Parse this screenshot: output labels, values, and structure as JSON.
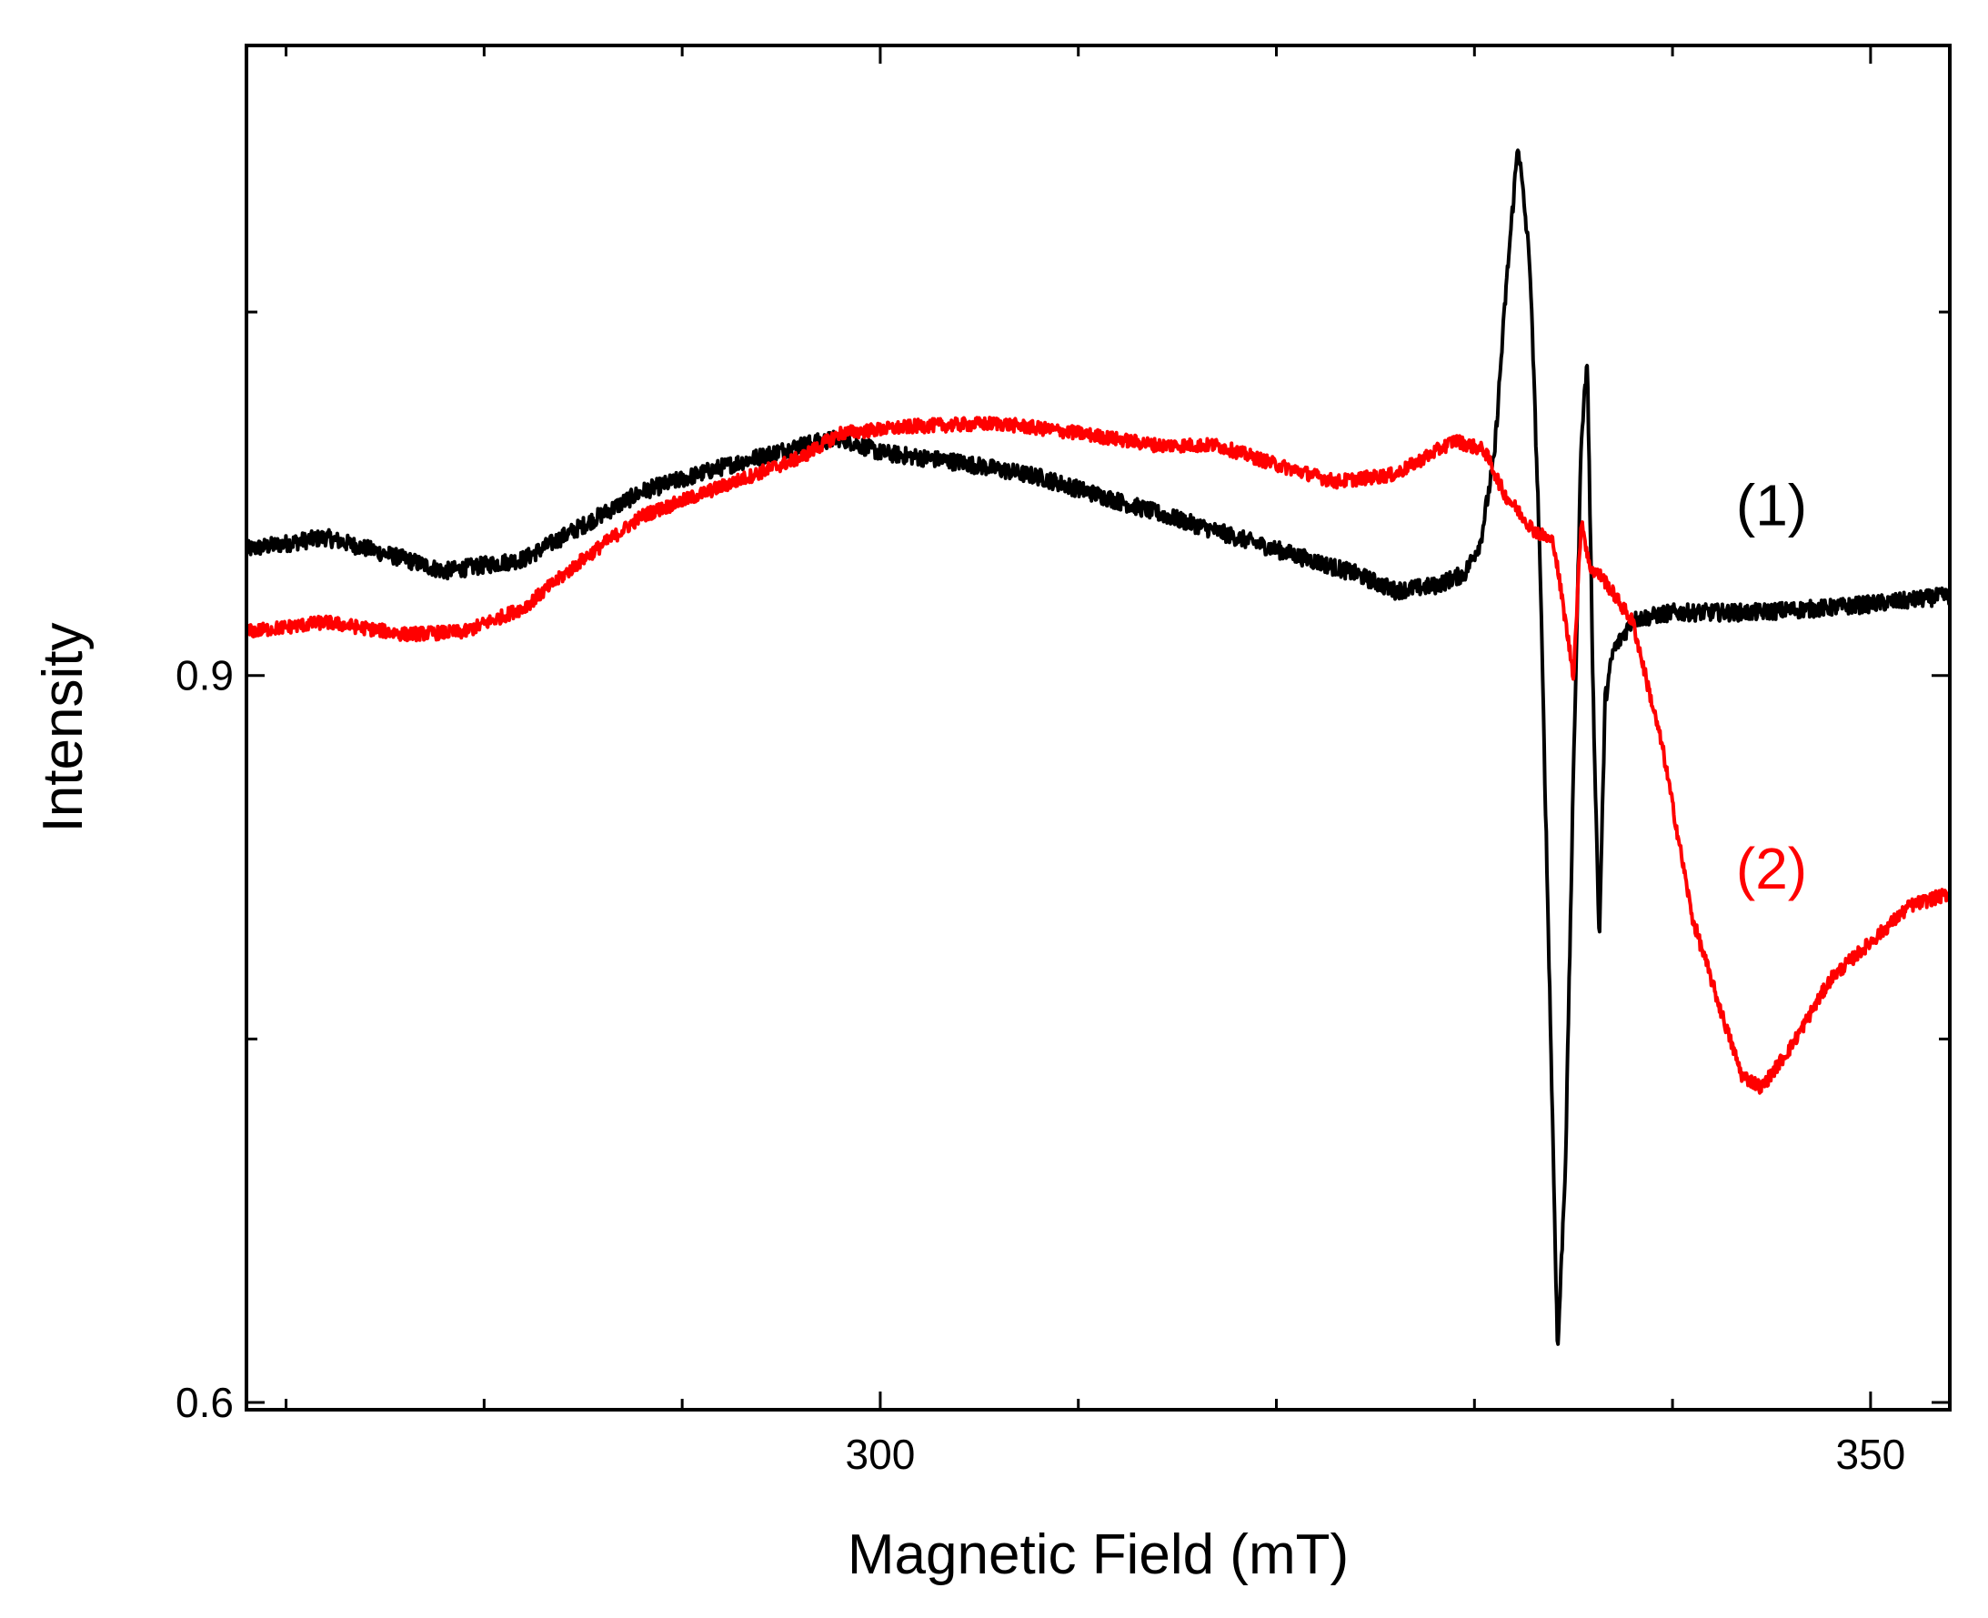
{
  "chart_data": {
    "type": "line",
    "title": "",
    "xlabel": "Magnetic Field (mT)",
    "ylabel": "Intensity",
    "xlim": [
      268,
      354
    ],
    "ylim": [
      0.597,
      1.16
    ],
    "xticks": [
      {
        "value": 300,
        "label": "300"
      },
      {
        "value": 350,
        "label": "350"
      }
    ],
    "x_minor_ticks": [
      270,
      280,
      290,
      310,
      320,
      330,
      340
    ],
    "yticks": [
      {
        "value": 0.9,
        "label": "0.9"
      },
      {
        "value": 0.6,
        "label": "0.6"
      }
    ],
    "y_minor_ticks": [
      0.75,
      1.05
    ],
    "grid": false,
    "series": [
      {
        "name": "(1)",
        "color": "#000000",
        "noise": 0.0035,
        "points": [
          [
            268,
            0.952
          ],
          [
            272,
            0.957
          ],
          [
            276,
            0.948
          ],
          [
            278,
            0.943
          ],
          [
            282,
            0.948
          ],
          [
            285,
            0.962
          ],
          [
            288,
            0.976
          ],
          [
            292,
            0.986
          ],
          [
            296,
            0.995
          ],
          [
            298,
            0.998
          ],
          [
            300,
            0.992
          ],
          [
            304,
            0.988
          ],
          [
            308,
            0.982
          ],
          [
            312,
            0.972
          ],
          [
            316,
            0.962
          ],
          [
            320,
            0.952
          ],
          [
            324,
            0.942
          ],
          [
            326,
            0.935
          ],
          [
            328,
            0.937
          ],
          [
            329.5,
            0.942
          ],
          [
            330.3,
            0.955
          ],
          [
            331,
            0.99
          ],
          [
            331.6,
            1.06
          ],
          [
            332.2,
            1.12
          ],
          [
            332.8,
            1.07
          ],
          [
            333.3,
            0.95
          ],
          [
            333.8,
            0.77
          ],
          [
            334.2,
            0.62
          ],
          [
            334.6,
            0.7
          ],
          [
            335,
            0.86
          ],
          [
            335.4,
            1.0
          ],
          [
            335.7,
            1.03
          ],
          [
            336,
            0.89
          ],
          [
            336.3,
            0.79
          ],
          [
            336.6,
            0.89
          ],
          [
            337,
            0.91
          ],
          [
            338,
            0.923
          ],
          [
            340,
            0.926
          ],
          [
            344,
            0.926
          ],
          [
            348,
            0.928
          ],
          [
            352,
            0.931
          ],
          [
            354,
            0.933
          ]
        ]
      },
      {
        "name": "(2)",
        "color": "#ff0000",
        "noise": 0.0028,
        "points": [
          [
            268,
            0.918
          ],
          [
            272,
            0.922
          ],
          [
            276,
            0.917
          ],
          [
            279,
            0.918
          ],
          [
            282,
            0.928
          ],
          [
            285,
            0.948
          ],
          [
            288,
            0.966
          ],
          [
            292,
            0.978
          ],
          [
            296,
            0.99
          ],
          [
            298,
            1.0
          ],
          [
            302,
            1.003
          ],
          [
            306,
            1.004
          ],
          [
            310,
            1.0
          ],
          [
            314,
            0.995
          ],
          [
            317,
            0.995
          ],
          [
            320,
            0.987
          ],
          [
            323,
            0.98
          ],
          [
            326,
            0.983
          ],
          [
            329,
            0.997
          ],
          [
            330.5,
            0.993
          ],
          [
            331.5,
            0.975
          ],
          [
            333,
            0.96
          ],
          [
            334,
            0.955
          ],
          [
            335,
            0.9
          ],
          [
            335.4,
            0.965
          ],
          [
            335.8,
            0.945
          ],
          [
            336.5,
            0.94
          ],
          [
            338,
            0.922
          ],
          [
            339.5,
            0.87
          ],
          [
            341,
            0.8
          ],
          [
            342.5,
            0.76
          ],
          [
            343.5,
            0.735
          ],
          [
            344.5,
            0.73
          ],
          [
            346,
            0.747
          ],
          [
            348,
            0.775
          ],
          [
            350,
            0.79
          ],
          [
            352,
            0.805
          ],
          [
            354,
            0.81
          ]
        ]
      }
    ],
    "annotations": [
      {
        "text": "(1)",
        "color": "#000000",
        "x": 345,
        "y": 0.962
      },
      {
        "text": "(2)",
        "color": "#ff0000",
        "x": 345,
        "y": 0.812
      }
    ]
  }
}
